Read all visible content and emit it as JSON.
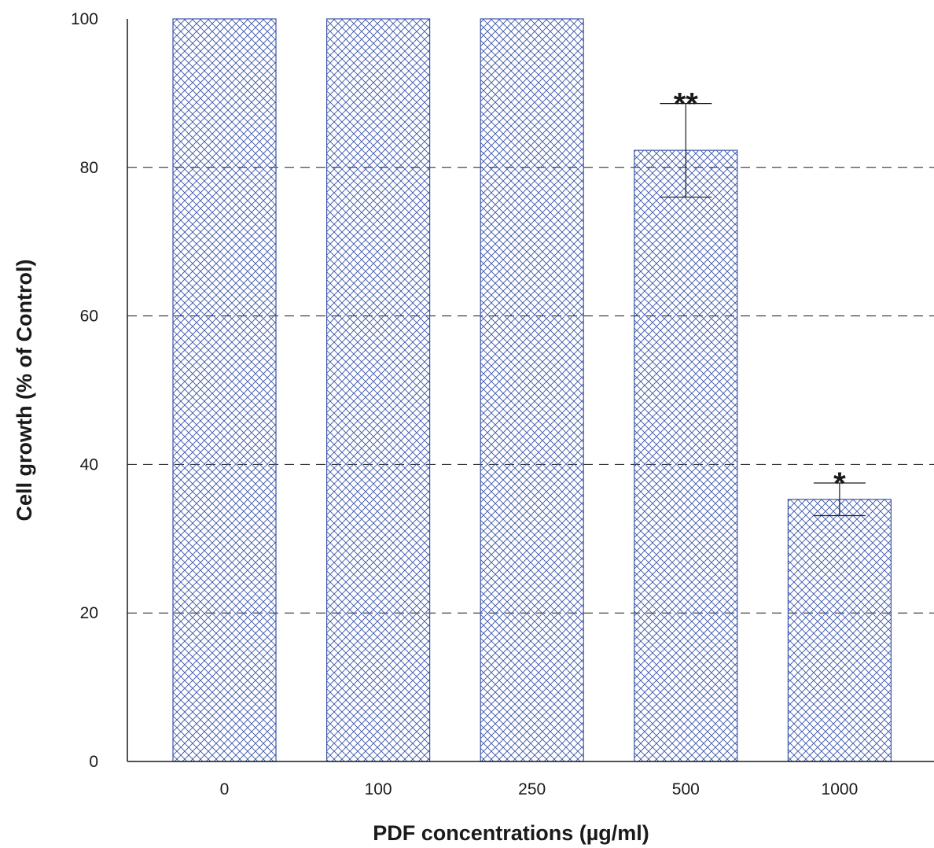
{
  "chart_data": {
    "type": "bar",
    "title": "",
    "xlabel": "PDF concentrations (µg/ml)",
    "ylabel": "Cell growth (% of Control)",
    "categories": [
      "0",
      "100",
      "250",
      "500",
      "1000"
    ],
    "values": [
      100,
      100,
      100,
      82.3,
      35.3
    ],
    "error": [
      null,
      null,
      null,
      6.3,
      2.2
    ],
    "significance": [
      "",
      "",
      "",
      "**",
      "*"
    ],
    "ylim": [
      0,
      100
    ],
    "yticks": [
      "0",
      "20",
      "40",
      "60",
      "80",
      "100"
    ],
    "grid": "horizontal dashed",
    "bar_pattern": "crosshatch",
    "colors": {
      "bar": "#3b55a8",
      "axis": "#1a1a1a",
      "grid": "#1a1a1a"
    }
  }
}
